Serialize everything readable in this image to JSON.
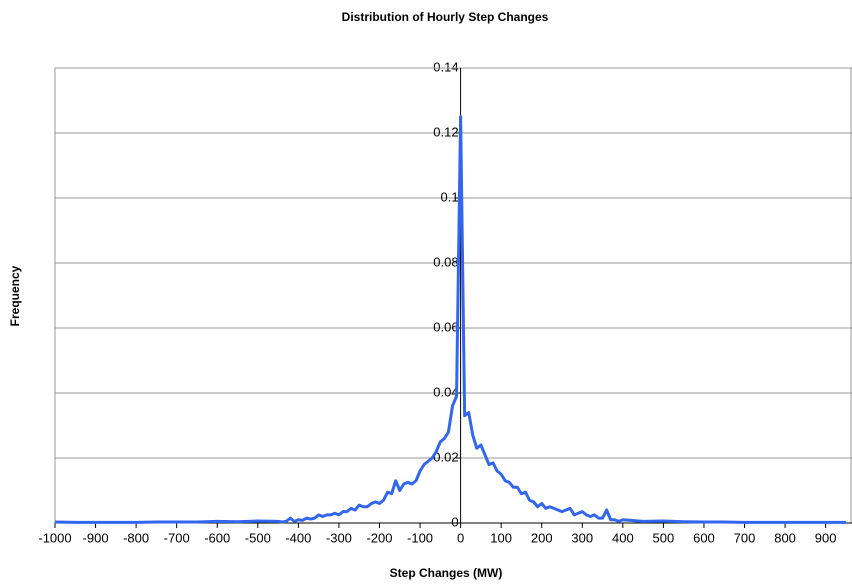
{
  "chart_data": {
    "type": "line",
    "title": "Distribution of Hourly Step Changes",
    "x_label": "Step Changes (MW)",
    "y_label": "Frequency",
    "x": [
      -1000,
      -950,
      -900,
      -850,
      -800,
      -750,
      -700,
      -650,
      -600,
      -550,
      -500,
      -450,
      -440,
      -430,
      -420,
      -410,
      -400,
      -390,
      -380,
      -370,
      -360,
      -350,
      -340,
      -330,
      -320,
      -310,
      -300,
      -290,
      -280,
      -270,
      -260,
      -250,
      -240,
      -230,
      -220,
      -210,
      -200,
      -190,
      -180,
      -170,
      -160,
      -150,
      -140,
      -130,
      -120,
      -110,
      -100,
      -90,
      -80,
      -70,
      -60,
      -50,
      -40,
      -30,
      -20,
      -10,
      0,
      10,
      20,
      30,
      40,
      50,
      60,
      70,
      80,
      90,
      100,
      110,
      120,
      130,
      140,
      150,
      160,
      170,
      180,
      190,
      200,
      210,
      220,
      230,
      240,
      250,
      260,
      270,
      280,
      290,
      300,
      310,
      320,
      330,
      340,
      350,
      360,
      370,
      380,
      390,
      400,
      450,
      500,
      550,
      600,
      650,
      700,
      750,
      800,
      850,
      900,
      950
    ],
    "series": [
      {
        "name": "Frequency",
        "color": "#3366ee",
        "values": [
          0.0003,
          0.0002,
          0.0002,
          0.0002,
          0.0002,
          0.0003,
          0.0003,
          0.0003,
          0.0005,
          0.0004,
          0.0006,
          0.0005,
          0.0003,
          0.0005,
          0.0015,
          0.0005,
          0.001,
          0.0008,
          0.0015,
          0.0012,
          0.0015,
          0.0025,
          0.002,
          0.0025,
          0.0025,
          0.003,
          0.0025,
          0.0035,
          0.0035,
          0.0045,
          0.004,
          0.0055,
          0.005,
          0.005,
          0.006,
          0.0065,
          0.006,
          0.007,
          0.0095,
          0.009,
          0.013,
          0.01,
          0.012,
          0.0125,
          0.012,
          0.013,
          0.016,
          0.018,
          0.019,
          0.02,
          0.022,
          0.025,
          0.026,
          0.028,
          0.036,
          0.039,
          0.125,
          0.033,
          0.034,
          0.027,
          0.023,
          0.024,
          0.021,
          0.018,
          0.0185,
          0.016,
          0.015,
          0.013,
          0.0125,
          0.011,
          0.011,
          0.009,
          0.0095,
          0.007,
          0.0065,
          0.005,
          0.006,
          0.0045,
          0.005,
          0.0045,
          0.004,
          0.0035,
          0.004,
          0.0045,
          0.0025,
          0.003,
          0.0035,
          0.0025,
          0.002,
          0.0025,
          0.0015,
          0.0015,
          0.004,
          0.001,
          0.001,
          0.0005,
          0.001,
          0.0005,
          0.0006,
          0.0004,
          0.0003,
          0.0003,
          0.0002,
          0.0002,
          0.0002,
          0.0002,
          0.0002,
          0.0002
        ]
      }
    ],
    "xlim": [
      -1000,
      965
    ],
    "xticks": [
      -1000,
      -900,
      -800,
      -700,
      -600,
      -500,
      -400,
      -300,
      -200,
      -100,
      0,
      100,
      200,
      300,
      400,
      500,
      600,
      700,
      800,
      900
    ],
    "ylim": [
      0,
      0.14
    ],
    "yticks": [
      0,
      0.02,
      0.04,
      0.06,
      0.08,
      0.1,
      0.12,
      0.14
    ],
    "grid": true
  }
}
